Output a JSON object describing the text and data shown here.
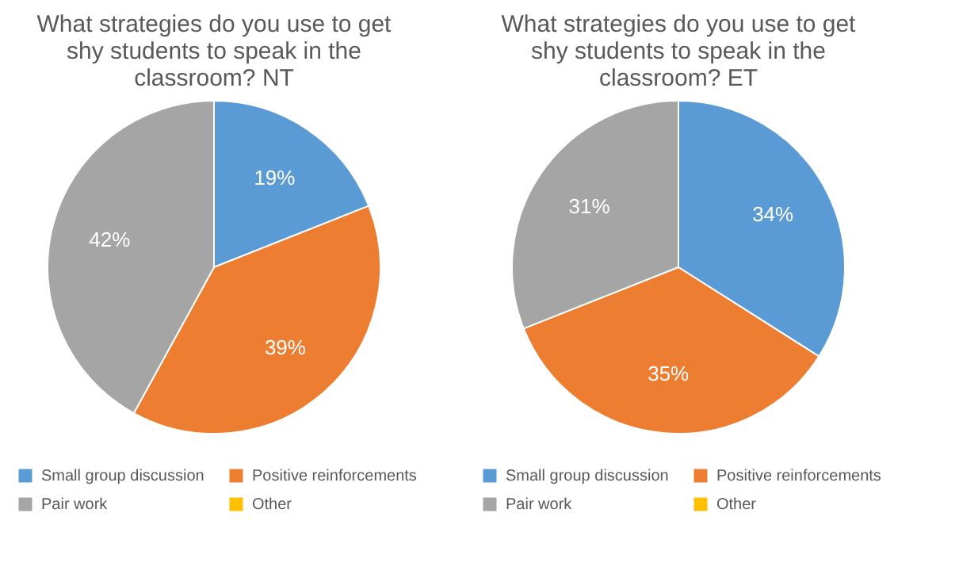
{
  "chart_data": [
    {
      "type": "pie",
      "title": "What strategies do you use to get shy students to speak in the classroom? NT",
      "categories": [
        "Small group discussion",
        "Positive reinforcements",
        "Pair work",
        "Other"
      ],
      "values": [
        19,
        39,
        42,
        0
      ],
      "colors": [
        "#5b9bd5",
        "#ed7d31",
        "#a5a5a5",
        "#ffc000"
      ],
      "value_labels": [
        "19%",
        "39%",
        "42%",
        null
      ],
      "legend": "bottom"
    },
    {
      "type": "pie",
      "title": "What strategies do you use to get shy students to speak in the classroom? ET",
      "categories": [
        "Small group discussion",
        "Positive reinforcements",
        "Pair work",
        "Other"
      ],
      "values": [
        34,
        35,
        31,
        0
      ],
      "colors": [
        "#5b9bd5",
        "#ed7d31",
        "#a5a5a5",
        "#ffc000"
      ],
      "value_labels": [
        "34%",
        "35%",
        "31%",
        null
      ],
      "legend": "bottom"
    }
  ]
}
